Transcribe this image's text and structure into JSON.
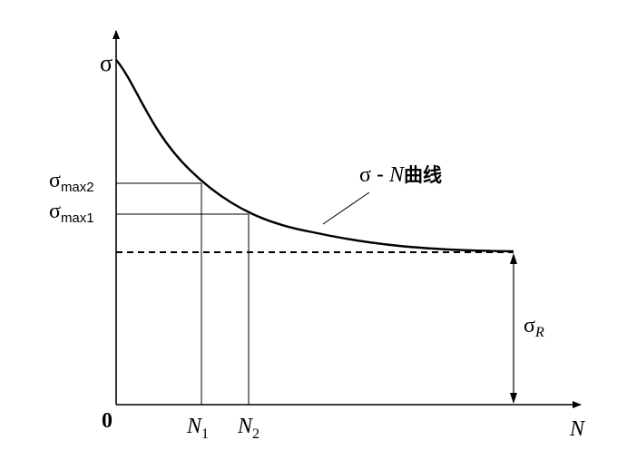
{
  "diagram": {
    "y_axis_label": "σ",
    "x_axis_label": "N",
    "origin_label": "0",
    "levels": [
      {
        "id": "max2",
        "symbol": "σ",
        "subscript": "max2"
      },
      {
        "id": "max1",
        "symbol": "σ",
        "subscript": "max1"
      }
    ],
    "cycle_marks": [
      {
        "id": "n1",
        "symbol": "N",
        "subscript": "1"
      },
      {
        "id": "n2",
        "symbol": "N",
        "subscript": "2"
      }
    ],
    "endurance_limit": {
      "symbol": "σ",
      "subscript": "R"
    },
    "curve_label": {
      "sigma": "σ",
      "dash": "-",
      "n": "N",
      "suffix": "曲线"
    }
  }
}
